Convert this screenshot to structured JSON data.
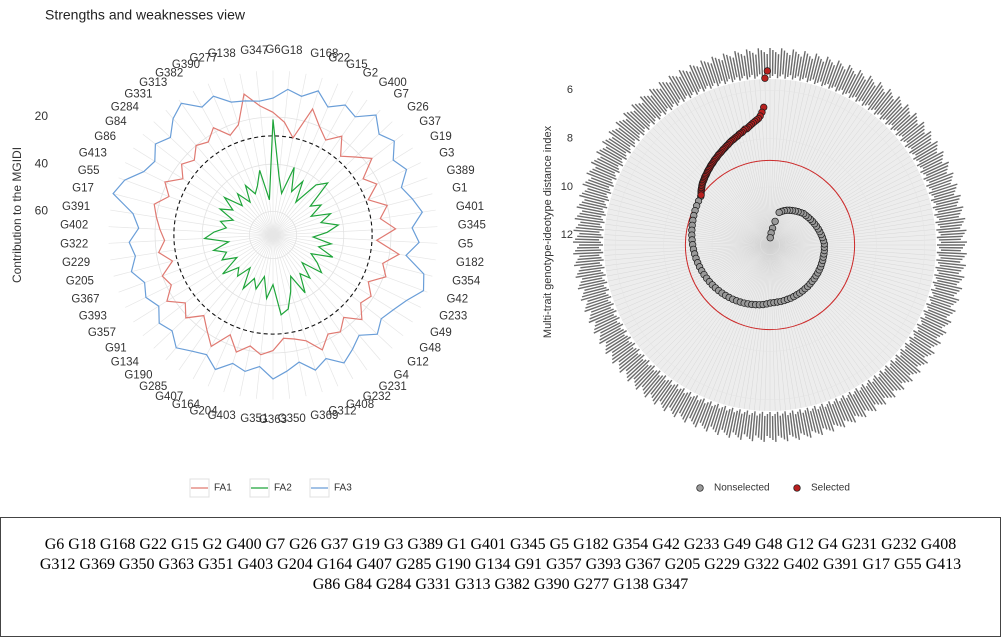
{
  "chart_data": [
    {
      "type": "radar",
      "title": "Strengths and weaknesses view",
      "y_label": "Contribution to the MGIDI",
      "categories": [
        "G6",
        "G18",
        "G168",
        "G22",
        "G15",
        "G2",
        "G400",
        "G7",
        "G26",
        "G37",
        "G19",
        "G3",
        "G389",
        "G1",
        "G401",
        "G345",
        "G5",
        "G182",
        "G354",
        "G42",
        "G233",
        "G49",
        "G48",
        "G12",
        "G4",
        "G231",
        "G232",
        "G408",
        "G312",
        "G369",
        "G350",
        "G363",
        "G351",
        "G403",
        "G204",
        "G164",
        "G407",
        "G285",
        "G190",
        "G134",
        "G91",
        "G357",
        "G393",
        "G367",
        "G205",
        "G229",
        "G322",
        "G402",
        "G391",
        "G17",
        "G55",
        "G413",
        "G86",
        "G84",
        "G284",
        "G331",
        "G313",
        "G382",
        "G390",
        "G277",
        "G138",
        "G347"
      ],
      "ylim": [
        70,
        -5
      ],
      "yticks": [
        20,
        40,
        60
      ],
      "reference": 28,
      "series": [
        {
          "name": "FA1",
          "color": "#e07a72",
          "values": [
            18,
            22,
            28,
            14,
            20,
            24,
            19,
            26,
            22,
            17,
            25,
            21,
            27,
            20,
            24,
            18,
            26,
            16,
            22,
            19,
            25,
            21,
            23,
            18,
            24,
            20,
            22,
            17,
            23,
            25,
            26,
            21,
            19,
            22,
            18,
            24,
            16,
            21,
            25,
            19,
            23,
            17,
            22,
            20,
            26,
            21,
            24,
            22,
            20,
            18,
            23,
            19,
            25,
            21,
            24,
            20,
            22,
            18,
            24,
            21,
            9,
            15
          ]
        },
        {
          "name": "FA2",
          "color": "#1fa53a",
          "values": [
            21,
            45,
            52,
            40,
            50,
            44,
            53,
            42,
            38,
            50,
            46,
            52,
            44,
            49,
            42,
            47,
            53,
            45,
            50,
            43,
            52,
            48,
            44,
            53,
            46,
            50,
            42,
            51,
            45,
            38,
            36,
            49,
            43,
            52,
            46,
            50,
            44,
            53,
            47,
            50,
            43,
            52,
            46,
            49,
            44,
            51,
            41,
            45,
            50,
            47,
            52,
            45,
            50,
            44,
            52,
            47,
            53,
            46,
            51,
            48,
            42,
            55
          ]
        },
        {
          "name": "FA3",
          "color": "#6a9ed8",
          "values": [
            12,
            8,
            10,
            6,
            11,
            7,
            9,
            3,
            8,
            5,
            10,
            7,
            12,
            9,
            6,
            11,
            8,
            13,
            4,
            2,
            7,
            10,
            12,
            9,
            14,
            11,
            8,
            13,
            10,
            15,
            12,
            9,
            14,
            11,
            13,
            8,
            12,
            10,
            7,
            11,
            9,
            13,
            10,
            12,
            8,
            11,
            9,
            13,
            10,
            0,
            3,
            9,
            11,
            7,
            10,
            5,
            2,
            8,
            6,
            11,
            12,
            13
          ]
        }
      ]
    },
    {
      "type": "spiral",
      "y_label": "Multi-trait genotype-ideotype distance index",
      "ylim": [
        12.4,
        4.5
      ],
      "yticks": [
        6,
        8,
        10,
        12
      ],
      "xlim": [
        0,
        413
      ],
      "cutoff": 8.9,
      "series": [
        {
          "name": "Nonselected",
          "color": "#9a9a9a",
          "x": [
            63,
            67,
            71,
            75,
            79,
            83,
            87,
            91,
            95,
            99,
            103,
            107,
            111,
            115,
            119,
            123,
            127,
            131,
            135,
            139,
            143,
            147,
            151,
            155,
            159,
            163,
            167,
            171,
            175,
            179,
            183,
            187,
            191,
            195,
            199,
            203,
            207,
            211,
            215,
            219,
            223,
            227,
            231,
            235,
            239,
            243,
            247,
            251,
            255,
            259,
            263,
            267,
            271,
            275,
            279,
            283,
            287,
            291,
            295,
            299,
            303,
            307,
            311,
            315,
            319,
            323,
            327,
            331,
            335,
            339,
            343,
            347,
            351,
            355,
            359,
            363,
            367,
            371,
            375,
            379,
            383,
            387,
            391,
            395,
            399,
            403,
            407,
            411
          ],
          "values": [
            8.9,
            8.93,
            8.96,
            8.99,
            9.02,
            9.05,
            9.08,
            9.11,
            9.14,
            9.17,
            9.2,
            9.23,
            9.26,
            9.29,
            9.32,
            9.35,
            9.38,
            9.41,
            9.44,
            9.47,
            9.5,
            9.53,
            9.56,
            9.59,
            9.62,
            9.65,
            9.68,
            9.71,
            9.74,
            9.77,
            9.8,
            9.83,
            9.86,
            9.89,
            9.92,
            9.96,
            10.0,
            10.01,
            10.02,
            10.02,
            10.03,
            10.04,
            10.04,
            10.05,
            10.06,
            10.06,
            10.07,
            10.08,
            10.08,
            10.09,
            10.1,
            10.1,
            10.11,
            10.11,
            10.12,
            10.12,
            10.13,
            10.13,
            10.14,
            10.14,
            10.14,
            10.15,
            10.15,
            10.18,
            10.21,
            10.24,
            10.27,
            10.3,
            10.33,
            10.36,
            10.39,
            10.42,
            10.45,
            10.48,
            10.5,
            10.55,
            10.6,
            10.65,
            10.7,
            10.75,
            10.8,
            10.86,
            10.93,
            11.0,
            11.4,
            11.7,
            11.9,
            12.1
          ]
        },
        {
          "name": "Selected",
          "color": "#b8201f",
          "x": [
            1,
            2,
            3,
            4,
            5,
            6,
            7,
            8,
            9,
            10,
            11,
            12,
            13,
            14,
            15,
            16,
            17,
            18,
            19,
            20,
            21,
            22,
            23,
            24,
            25,
            26,
            27,
            28,
            29,
            30,
            31,
            32,
            33,
            34,
            35,
            36,
            37,
            38,
            39,
            40,
            41,
            42,
            43,
            44,
            45,
            46,
            47,
            48,
            49,
            50,
            51,
            52,
            53,
            54,
            55,
            56,
            57,
            58,
            59,
            60,
            61,
            62
          ],
          "values": [
            5.2,
            5.5,
            6.7,
            6.9,
            7.05,
            7.15,
            7.2,
            7.25,
            7.3,
            7.35,
            7.4,
            7.45,
            7.5,
            7.5,
            7.55,
            7.6,
            7.62,
            7.65,
            7.7,
            7.72,
            7.75,
            7.78,
            7.8,
            7.83,
            7.86,
            7.9,
            7.92,
            7.95,
            7.98,
            8.0,
            8.03,
            8.06,
            8.08,
            8.1,
            8.13,
            8.16,
            8.18,
            8.2,
            8.23,
            8.26,
            8.28,
            8.3,
            8.33,
            8.36,
            8.38,
            8.4,
            8.43,
            8.46,
            8.48,
            8.5,
            8.53,
            8.56,
            8.58,
            8.6,
            8.63,
            8.66,
            8.7,
            8.73,
            8.76,
            8.8,
            8.84,
            8.88
          ]
        }
      ]
    }
  ],
  "caption": "G6 G18 G168 G22 G15 G2 G400 G7 G26 G37 G19 G3 G389 G1 G401 G345 G5 G182 G354 G42 G233 G49 G48 G12 G4 G231 G232 G408 G312 G369 G350 G363 G351 G403 G204 G164 G407 G285 G190 G134 G91 G357 G393 G367 G205 G229 G322 G402 G391 G17 G55 G413 G86 G84 G284 G331 G313 G382 G390 G277 G138 G347"
}
